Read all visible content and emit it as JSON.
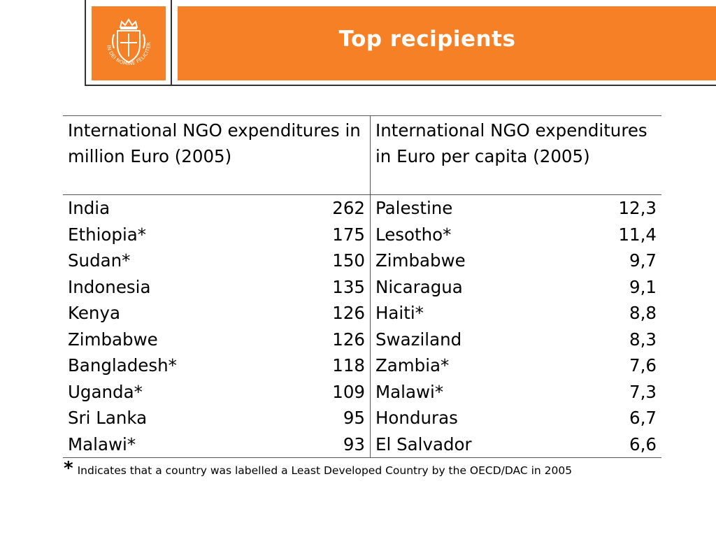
{
  "header": {
    "title": "Top recipients",
    "logo_motto": "IN DEI NOMINE FELICITER",
    "accent_color": "#f58025"
  },
  "table": {
    "headers": [
      "International NGO expenditures in million Euro (2005)",
      "International NGO expenditures in Euro per capita (2005)"
    ],
    "rows": [
      {
        "left_country": "India",
        "left_value": "262",
        "right_country": "Palestine",
        "right_value": "12,3"
      },
      {
        "left_country": "Ethiopia*",
        "left_value": "175",
        "right_country": "Lesotho*",
        "right_value": "11,4"
      },
      {
        "left_country": "Sudan*",
        "left_value": "150",
        "right_country": "Zimbabwe",
        "right_value": "9,7"
      },
      {
        "left_country": "Indonesia",
        "left_value": "135",
        "right_country": "Nicaragua",
        "right_value": "9,1"
      },
      {
        "left_country": "Kenya",
        "left_value": "126",
        "right_country": "Haiti*",
        "right_value": "8,8"
      },
      {
        "left_country": "Zimbabwe",
        "left_value": "126",
        "right_country": "Swaziland",
        "right_value": "8,3"
      },
      {
        "left_country": "Bangladesh*",
        "left_value": "118",
        "right_country": "Zambia*",
        "right_value": "7,6"
      },
      {
        "left_country": "Uganda*",
        "left_value": "109",
        "right_country": "Malawi*",
        "right_value": "7,3"
      },
      {
        "left_country": "Sri Lanka",
        "left_value": "95",
        "right_country": "Honduras",
        "right_value": "6,7"
      },
      {
        "left_country": "Malawi*",
        "left_value": "93",
        "right_country": "El Salvador",
        "right_value": "6,6"
      }
    ]
  },
  "footnote": {
    "marker": "*",
    "text": "Indicates that a country was labelled a Least Developed Country by the OECD/DAC in 2005"
  }
}
